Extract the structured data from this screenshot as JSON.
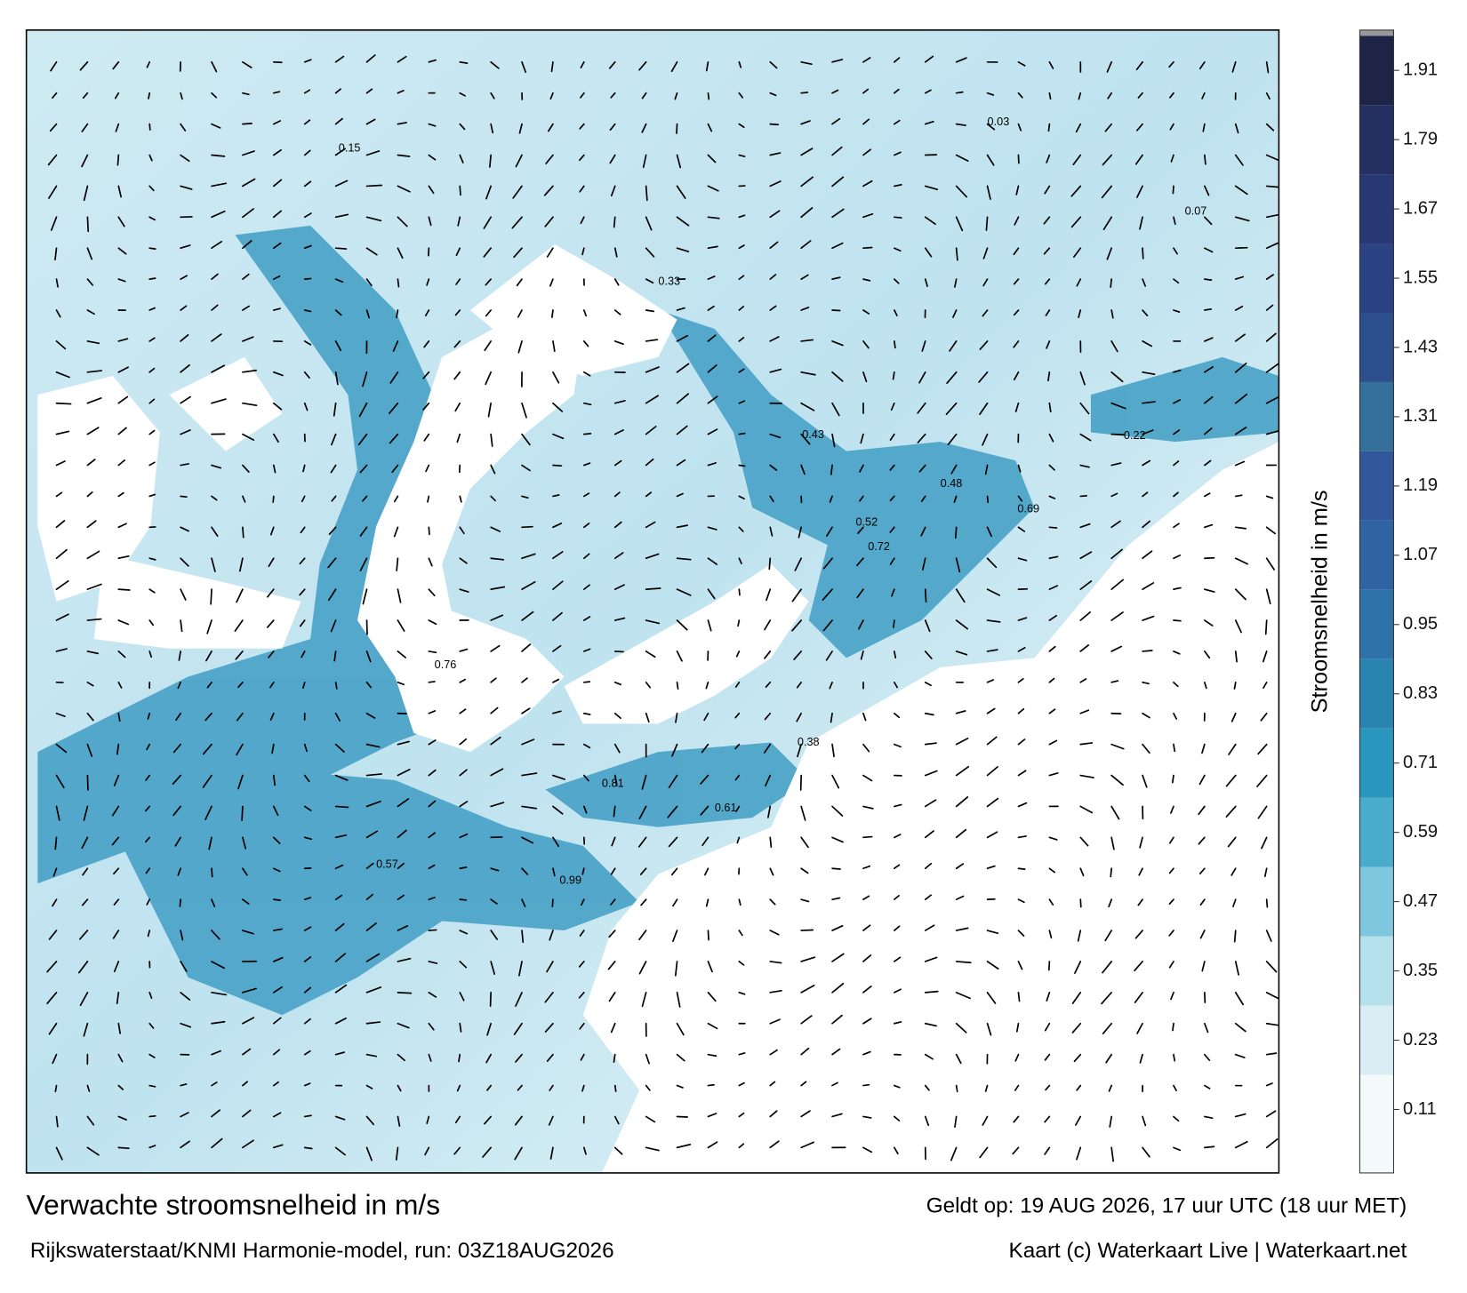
{
  "map": {
    "title": "Verwachte stroomsnelheid in m/s",
    "valid": "Geldt op: 19 AUG 2026, 17 uur UTC (18 uur MET)",
    "model": "Rijkswaterstaat/KNMI Harmonie-model, run: 03Z18AUG2026",
    "credit": "Kaart (c) Waterkaart Live | Waterkaart.net",
    "labels": [
      "0.81",
      "0.99",
      "0.76",
      "0.61",
      "0.72",
      "0.57",
      "0.43",
      "0.33",
      "0.22",
      "0.15",
      "0.07",
      "0.03",
      "0.48",
      "0.69",
      "0.52",
      "0.38"
    ]
  },
  "colorbar": {
    "label": "Stroomsnelheid in m/s",
    "lim": [
      0,
      1.97
    ],
    "ticks": [
      0.11,
      0.23,
      0.35,
      0.47,
      0.59,
      0.71,
      0.83,
      0.95,
      1.07,
      1.19,
      1.31,
      1.43,
      1.55,
      1.67,
      1.79,
      1.91
    ],
    "colors": [
      "#f4fafc",
      "#d9eef4",
      "#b5e0ec",
      "#7fc7dc",
      "#4aaccc",
      "#2a95bd",
      "#2a84b0",
      "#2d72a8",
      "#2f64a3",
      "#30589a",
      "#35709a",
      "#2e4f8e",
      "#2b4283",
      "#283874",
      "#242f62",
      "#1e2446"
    ]
  }
}
